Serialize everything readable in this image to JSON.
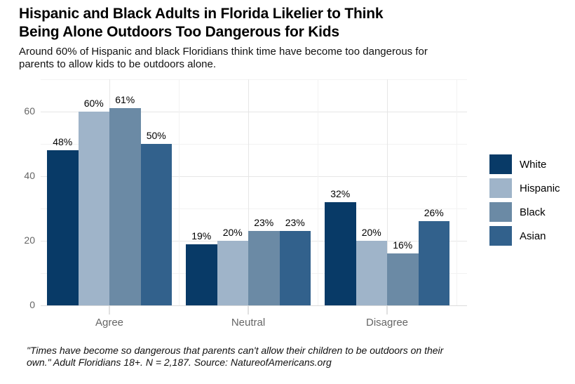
{
  "header": {
    "title": "Hispanic and Black Adults in Florida Likelier to Think\nBeing Alone Outdoors Too Dangerous for Kids",
    "subtitle": "Around 60% of Hispanic and black Floridians think time have become too dangerous for\nparents to allow kids to be outdoors alone."
  },
  "footer": {
    "note": "\"Times have become so dangerous that parents can't allow their children to be outdoors on their\nown.\" Adult Floridians 18+. N = 2,187. Source: NatureofAmericans.org"
  },
  "chart_data": {
    "type": "bar",
    "title": "Hispanic and Black Adults in Florida Likelier to Think Being Alone Outdoors Too Dangerous for Kids",
    "subtitle": "Around 60% of Hispanic and black Floridians think time have become too dangerous for parents to allow kids to be outdoors alone.",
    "categories": [
      "Agree",
      "Neutral",
      "Disagree"
    ],
    "series": [
      {
        "name": "White",
        "color": "#083a67",
        "values": [
          48,
          19,
          32
        ]
      },
      {
        "name": "Hispanic",
        "color": "#9fb4c9",
        "values": [
          60,
          20,
          20
        ]
      },
      {
        "name": "Black",
        "color": "#6b8aa5",
        "values": [
          61,
          23,
          16
        ]
      },
      {
        "name": "Asian",
        "color": "#32618c",
        "values": [
          50,
          23,
          26
        ]
      }
    ],
    "value_labels": [
      [
        "48%",
        "60%",
        "61%",
        "50%"
      ],
      [
        "19%",
        "20%",
        "23%",
        "23%"
      ],
      [
        "32%",
        "20%",
        "16%",
        "26%"
      ]
    ],
    "value_suffix": "%",
    "ylim": [
      0,
      70
    ],
    "yticks": [
      0,
      20,
      40,
      60
    ],
    "grid": "on",
    "legend_position": "right",
    "source": "NatureofAmericans.org"
  }
}
